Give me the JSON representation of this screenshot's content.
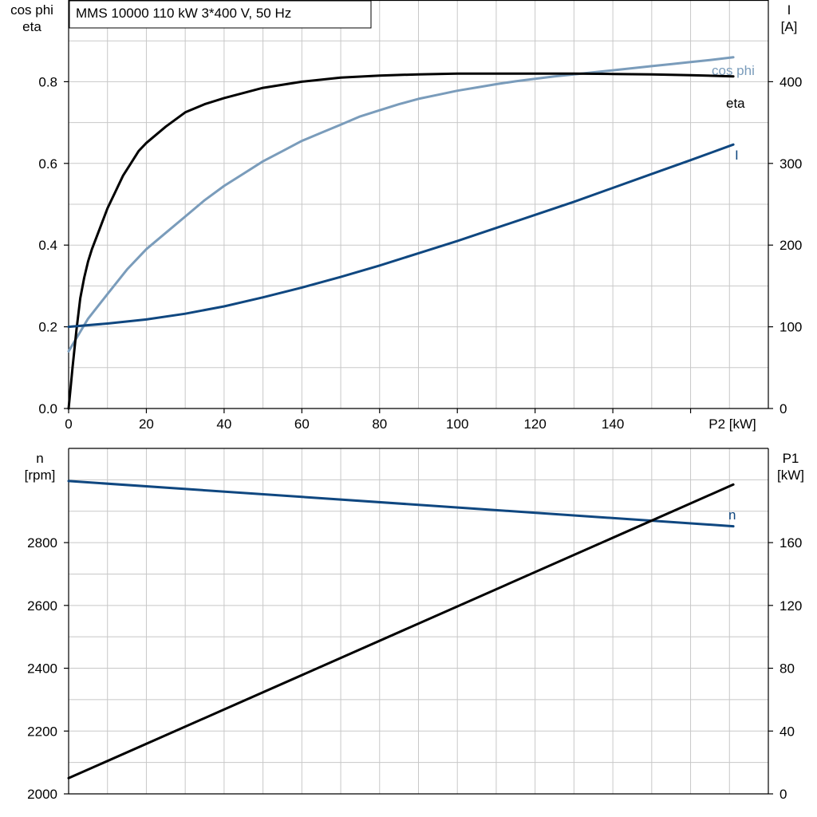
{
  "colors": {
    "cosphi": "#7a9cbb",
    "eta": "#000000",
    "current": "#0f4780",
    "speed": "#0f4780",
    "p1": "#000000",
    "grid": "#c8c8c8"
  },
  "chart_data": [
    {
      "type": "line",
      "title": "MMS 10000   110 kW   3*400 V, 50 Hz",
      "xlabel": "P2 [kW]",
      "ylabel": "cos phi\neta",
      "y2label": "I\n[A]",
      "xlim": [
        0,
        180
      ],
      "ylim": [
        0,
        1.0
      ],
      "y2lim": [
        0,
        500
      ],
      "x_ticks": [
        0,
        20,
        40,
        60,
        80,
        100,
        120,
        140
      ],
      "y_ticks": [
        0.0,
        0.2,
        0.4,
        0.6,
        0.8
      ],
      "y_tick_labels": [
        "0.0",
        "0.2",
        "0.4",
        "0.6",
        "0.8"
      ],
      "y2_ticks": [
        0,
        100,
        200,
        300,
        400
      ],
      "grid": true,
      "series": [
        {
          "name": "cos phi",
          "axis": "left",
          "color_key": "cosphi",
          "x": [
            0,
            5,
            10,
            15,
            20,
            25,
            30,
            35,
            40,
            45,
            50,
            55,
            60,
            65,
            70,
            75,
            80,
            85,
            90,
            95,
            100,
            105,
            110,
            115,
            120,
            125,
            130,
            135,
            140,
            145,
            150,
            155,
            160,
            165,
            171
          ],
          "y": [
            0.14,
            0.22,
            0.28,
            0.34,
            0.39,
            0.43,
            0.47,
            0.51,
            0.545,
            0.575,
            0.605,
            0.63,
            0.655,
            0.675,
            0.695,
            0.715,
            0.73,
            0.745,
            0.758,
            0.768,
            0.778,
            0.786,
            0.794,
            0.801,
            0.807,
            0.813,
            0.818,
            0.823,
            0.828,
            0.833,
            0.838,
            0.843,
            0.848,
            0.853,
            0.86
          ]
        },
        {
          "name": "eta",
          "axis": "left",
          "color_key": "eta",
          "x": [
            0,
            1,
            2,
            3,
            4,
            5,
            6,
            8,
            10,
            12,
            14,
            16,
            18,
            20,
            25,
            30,
            35,
            40,
            50,
            60,
            70,
            80,
            90,
            100,
            110,
            120,
            130,
            140,
            150,
            160,
            171
          ],
          "y": [
            0.0,
            0.1,
            0.19,
            0.27,
            0.32,
            0.36,
            0.39,
            0.44,
            0.49,
            0.53,
            0.57,
            0.6,
            0.63,
            0.65,
            0.69,
            0.725,
            0.745,
            0.76,
            0.785,
            0.8,
            0.81,
            0.815,
            0.818,
            0.82,
            0.82,
            0.82,
            0.82,
            0.819,
            0.818,
            0.816,
            0.813
          ]
        },
        {
          "name": "I",
          "axis": "right",
          "color_key": "current",
          "x": [
            0,
            10,
            20,
            30,
            40,
            50,
            60,
            70,
            80,
            90,
            100,
            110,
            120,
            130,
            140,
            150,
            160,
            171
          ],
          "y": [
            100,
            104,
            109,
            116,
            125,
            136,
            148,
            161,
            175,
            190,
            205,
            221,
            237,
            253,
            270,
            287,
            304,
            323
          ]
        }
      ]
    },
    {
      "type": "line",
      "xlim": [
        0,
        180
      ],
      "ylabel": "n\n[rpm]",
      "y2label": "P1\n[kW]",
      "ylim": [
        2000,
        3100
      ],
      "y2lim": [
        0,
        220
      ],
      "y_ticks": [
        2000,
        2200,
        2400,
        2600,
        2800
      ],
      "y2_ticks": [
        0,
        40,
        80,
        120,
        160
      ],
      "grid": true,
      "series": [
        {
          "name": "n",
          "axis": "left",
          "color_key": "speed",
          "x": [
            0,
            171
          ],
          "y": [
            2996,
            2852
          ]
        },
        {
          "name": "",
          "axis": "right",
          "color_key": "p1",
          "x": [
            0,
            171
          ],
          "y": [
            10,
            197
          ]
        }
      ]
    }
  ]
}
